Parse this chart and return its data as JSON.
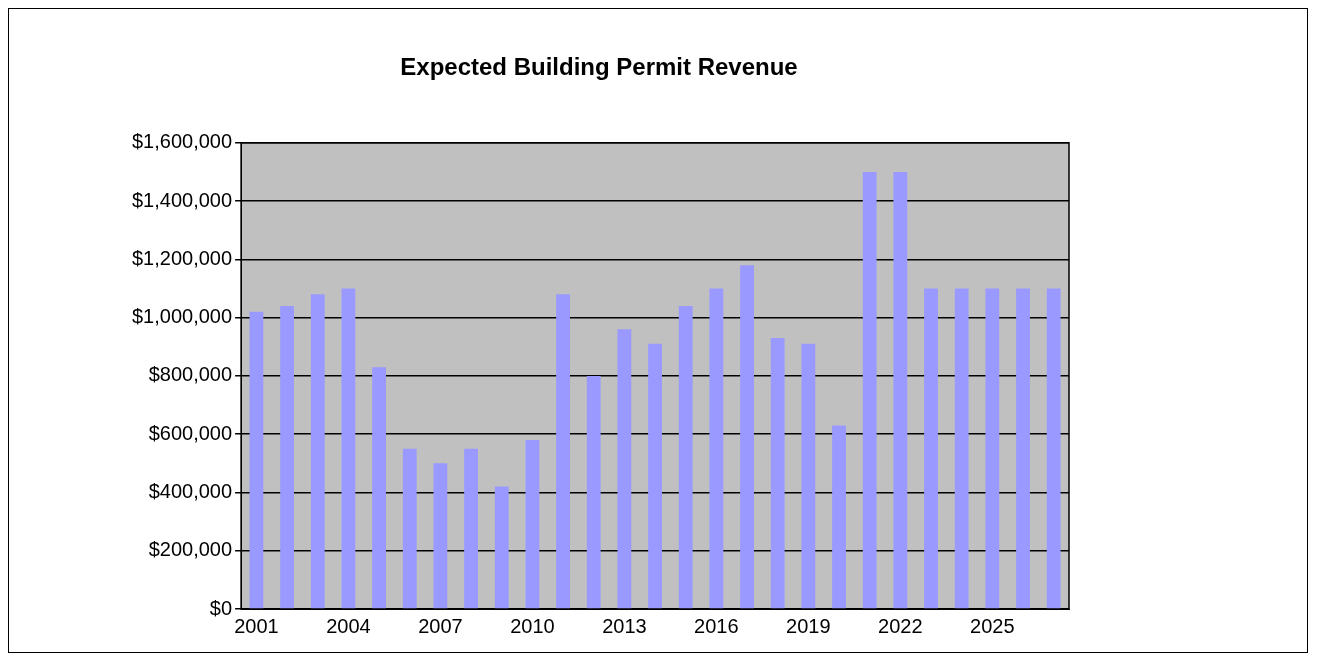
{
  "chart_data": {
    "type": "bar",
    "title": "Expected Building Permit Revenue",
    "categories": [
      "2001",
      null,
      null,
      "2004",
      null,
      null,
      "2007",
      null,
      null,
      "2010",
      null,
      null,
      "2013",
      null,
      null,
      "2016",
      null,
      null,
      "2019",
      null,
      null,
      "2022",
      null,
      null,
      "2025",
      null,
      null
    ],
    "values": [
      1020000,
      1040000,
      1080000,
      1100000,
      830000,
      550000,
      500000,
      550000,
      420000,
      580000,
      1080000,
      800000,
      960000,
      910000,
      1040000,
      1100000,
      1180000,
      930000,
      910000,
      630000,
      1500000,
      1500000,
      1100000,
      1100000,
      1100000,
      1100000,
      1100000
    ],
    "color": "#9999ff",
    "ylim": [
      0,
      1600000
    ],
    "yticks": [
      {
        "value": 0,
        "label": "$0"
      },
      {
        "value": 200000,
        "label": "$200,000"
      },
      {
        "value": 400000,
        "label": "$400,000"
      },
      {
        "value": 600000,
        "label": "$600,000"
      },
      {
        "value": 800000,
        "label": "$800,000"
      },
      {
        "value": 1000000,
        "label": "$1,000,000"
      },
      {
        "value": 1200000,
        "label": "$1,200,000"
      },
      {
        "value": 1400000,
        "label": "$1,400,000"
      },
      {
        "value": 1600000,
        "label": "$1,600,000"
      }
    ],
    "grid": "y",
    "legend": false
  }
}
